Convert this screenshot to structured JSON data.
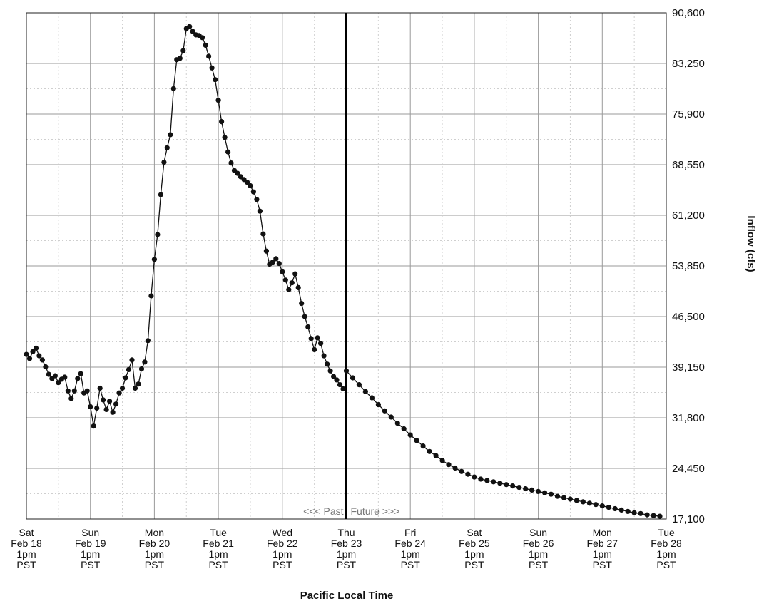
{
  "chart_data": {
    "type": "line",
    "title": "",
    "xlabel": "Pacific Local Time",
    "ylabel": "Inflow (cfs)",
    "ylim": [
      17100,
      90600
    ],
    "xlim": [
      0,
      10
    ],
    "y_ticks": [
      "90,600",
      "83,250",
      "75,900",
      "68,550",
      "61,200",
      "53,850",
      "46,500",
      "39,150",
      "31,800",
      "24,450",
      "17,100"
    ],
    "x_ticks": [
      {
        "day": "Sat",
        "date": "Feb 18",
        "time": "1pm",
        "tz": "PST"
      },
      {
        "day": "Sun",
        "date": "Feb 19",
        "time": "1pm",
        "tz": "PST"
      },
      {
        "day": "Mon",
        "date": "Feb 20",
        "time": "1pm",
        "tz": "PST"
      },
      {
        "day": "Tue",
        "date": "Feb 21",
        "time": "1pm",
        "tz": "PST"
      },
      {
        "day": "Wed",
        "date": "Feb 22",
        "time": "1pm",
        "tz": "PST"
      },
      {
        "day": "Thu",
        "date": "Feb 23",
        "time": "1pm",
        "tz": "PST"
      },
      {
        "day": "Fri",
        "date": "Feb 24",
        "time": "1pm",
        "tz": "PST"
      },
      {
        "day": "Sat",
        "date": "Feb 25",
        "time": "1pm",
        "tz": "PST"
      },
      {
        "day": "Sun",
        "date": "Feb 26",
        "time": "1pm",
        "tz": "PST"
      },
      {
        "day": "Mon",
        "date": "Feb 27",
        "time": "1pm",
        "tz": "PST"
      },
      {
        "day": "Tue",
        "date": "Feb 28",
        "time": "1pm",
        "tz": "PST"
      }
    ],
    "now_day": 5.0,
    "past_label": "<<< Past",
    "future_label": "Future >>>",
    "grid": true,
    "series": [
      {
        "x": [
          0.0,
          0.05,
          0.1,
          0.15,
          0.2,
          0.25,
          0.3,
          0.35,
          0.4,
          0.45,
          0.5,
          0.55,
          0.6,
          0.65,
          0.7,
          0.75,
          0.8,
          0.85,
          0.9,
          0.95,
          1.0,
          1.05,
          1.1,
          1.15,
          1.2,
          1.25,
          1.3,
          1.35,
          1.4,
          1.45,
          1.5,
          1.55,
          1.6,
          1.65,
          1.7,
          1.75,
          1.8,
          1.85,
          1.9,
          1.95,
          2.0,
          2.05,
          2.1,
          2.15,
          2.2,
          2.25,
          2.3,
          2.35,
          2.4,
          2.45,
          2.5,
          2.55,
          2.6,
          2.65,
          2.7,
          2.75,
          2.8,
          2.85,
          2.9,
          2.95,
          3.0,
          3.05,
          3.1,
          3.15,
          3.2,
          3.25,
          3.3,
          3.35,
          3.4,
          3.45,
          3.5,
          3.55,
          3.6,
          3.65,
          3.7,
          3.75,
          3.8,
          3.85,
          3.9,
          3.95,
          4.0,
          4.05,
          4.1,
          4.15,
          4.2,
          4.25,
          4.3,
          4.35,
          4.4,
          4.45,
          4.5,
          4.55,
          4.6,
          4.65,
          4.7,
          4.75,
          4.8,
          4.85,
          4.9,
          4.95
        ],
        "y": [
          41000,
          40400,
          41400,
          41900,
          40800,
          40200,
          39200,
          38100,
          37500,
          37900,
          36900,
          37400,
          37700,
          35700,
          34600,
          35700,
          37500,
          38200,
          35400,
          35700,
          33400,
          30600,
          33200,
          36100,
          34400,
          33000,
          34200,
          32600,
          33800,
          35400,
          36100,
          37600,
          38800,
          40200,
          36100,
          36700,
          38900,
          39900,
          43000,
          49500,
          54800,
          58400,
          64200,
          68900,
          71000,
          72900,
          79600,
          83800,
          84000,
          85100,
          88300,
          88600,
          87900,
          87400,
          87300,
          87000,
          85900,
          84300,
          82600,
          80900,
          77900,
          74800,
          72500,
          70400,
          68800,
          67700,
          67300,
          66800,
          66400,
          66000,
          65500,
          64600,
          63500,
          61800,
          58500,
          56000,
          54100,
          54400,
          54900,
          54200,
          53000,
          51800,
          50400,
          51400,
          52700,
          50700,
          48400,
          46500,
          45000,
          43300,
          41700,
          43400,
          42600,
          40800,
          39600,
          38600,
          37800,
          37300,
          36600,
          36000
        ]
      },
      {
        "x": [
          5.0,
          5.1,
          5.2,
          5.3,
          5.4,
          5.5,
          5.6,
          5.7,
          5.8,
          5.9,
          6.0,
          6.1,
          6.2,
          6.3,
          6.4,
          6.5,
          6.6,
          6.7,
          6.8,
          6.9,
          7.0,
          7.1,
          7.2,
          7.3,
          7.4,
          7.5,
          7.6,
          7.7,
          7.8,
          7.9,
          8.0,
          8.1,
          8.2,
          8.3,
          8.4,
          8.5,
          8.6,
          8.7,
          8.8,
          8.9,
          9.0,
          9.1,
          9.2,
          9.3,
          9.4,
          9.5,
          9.6,
          9.7,
          9.8,
          9.9
        ],
        "y": [
          38600,
          37600,
          36600,
          35600,
          34700,
          33700,
          32800,
          31900,
          31000,
          30200,
          29300,
          28500,
          27700,
          26900,
          26300,
          25600,
          25000,
          24500,
          24000,
          23600,
          23200,
          22900,
          22700,
          22500,
          22300,
          22100,
          21900,
          21700,
          21500,
          21300,
          21100,
          20900,
          20700,
          20400,
          20200,
          20000,
          19800,
          19600,
          19400,
          19200,
          19000,
          18800,
          18600,
          18400,
          18200,
          18000,
          17900,
          17700,
          17600,
          17500
        ]
      }
    ]
  }
}
